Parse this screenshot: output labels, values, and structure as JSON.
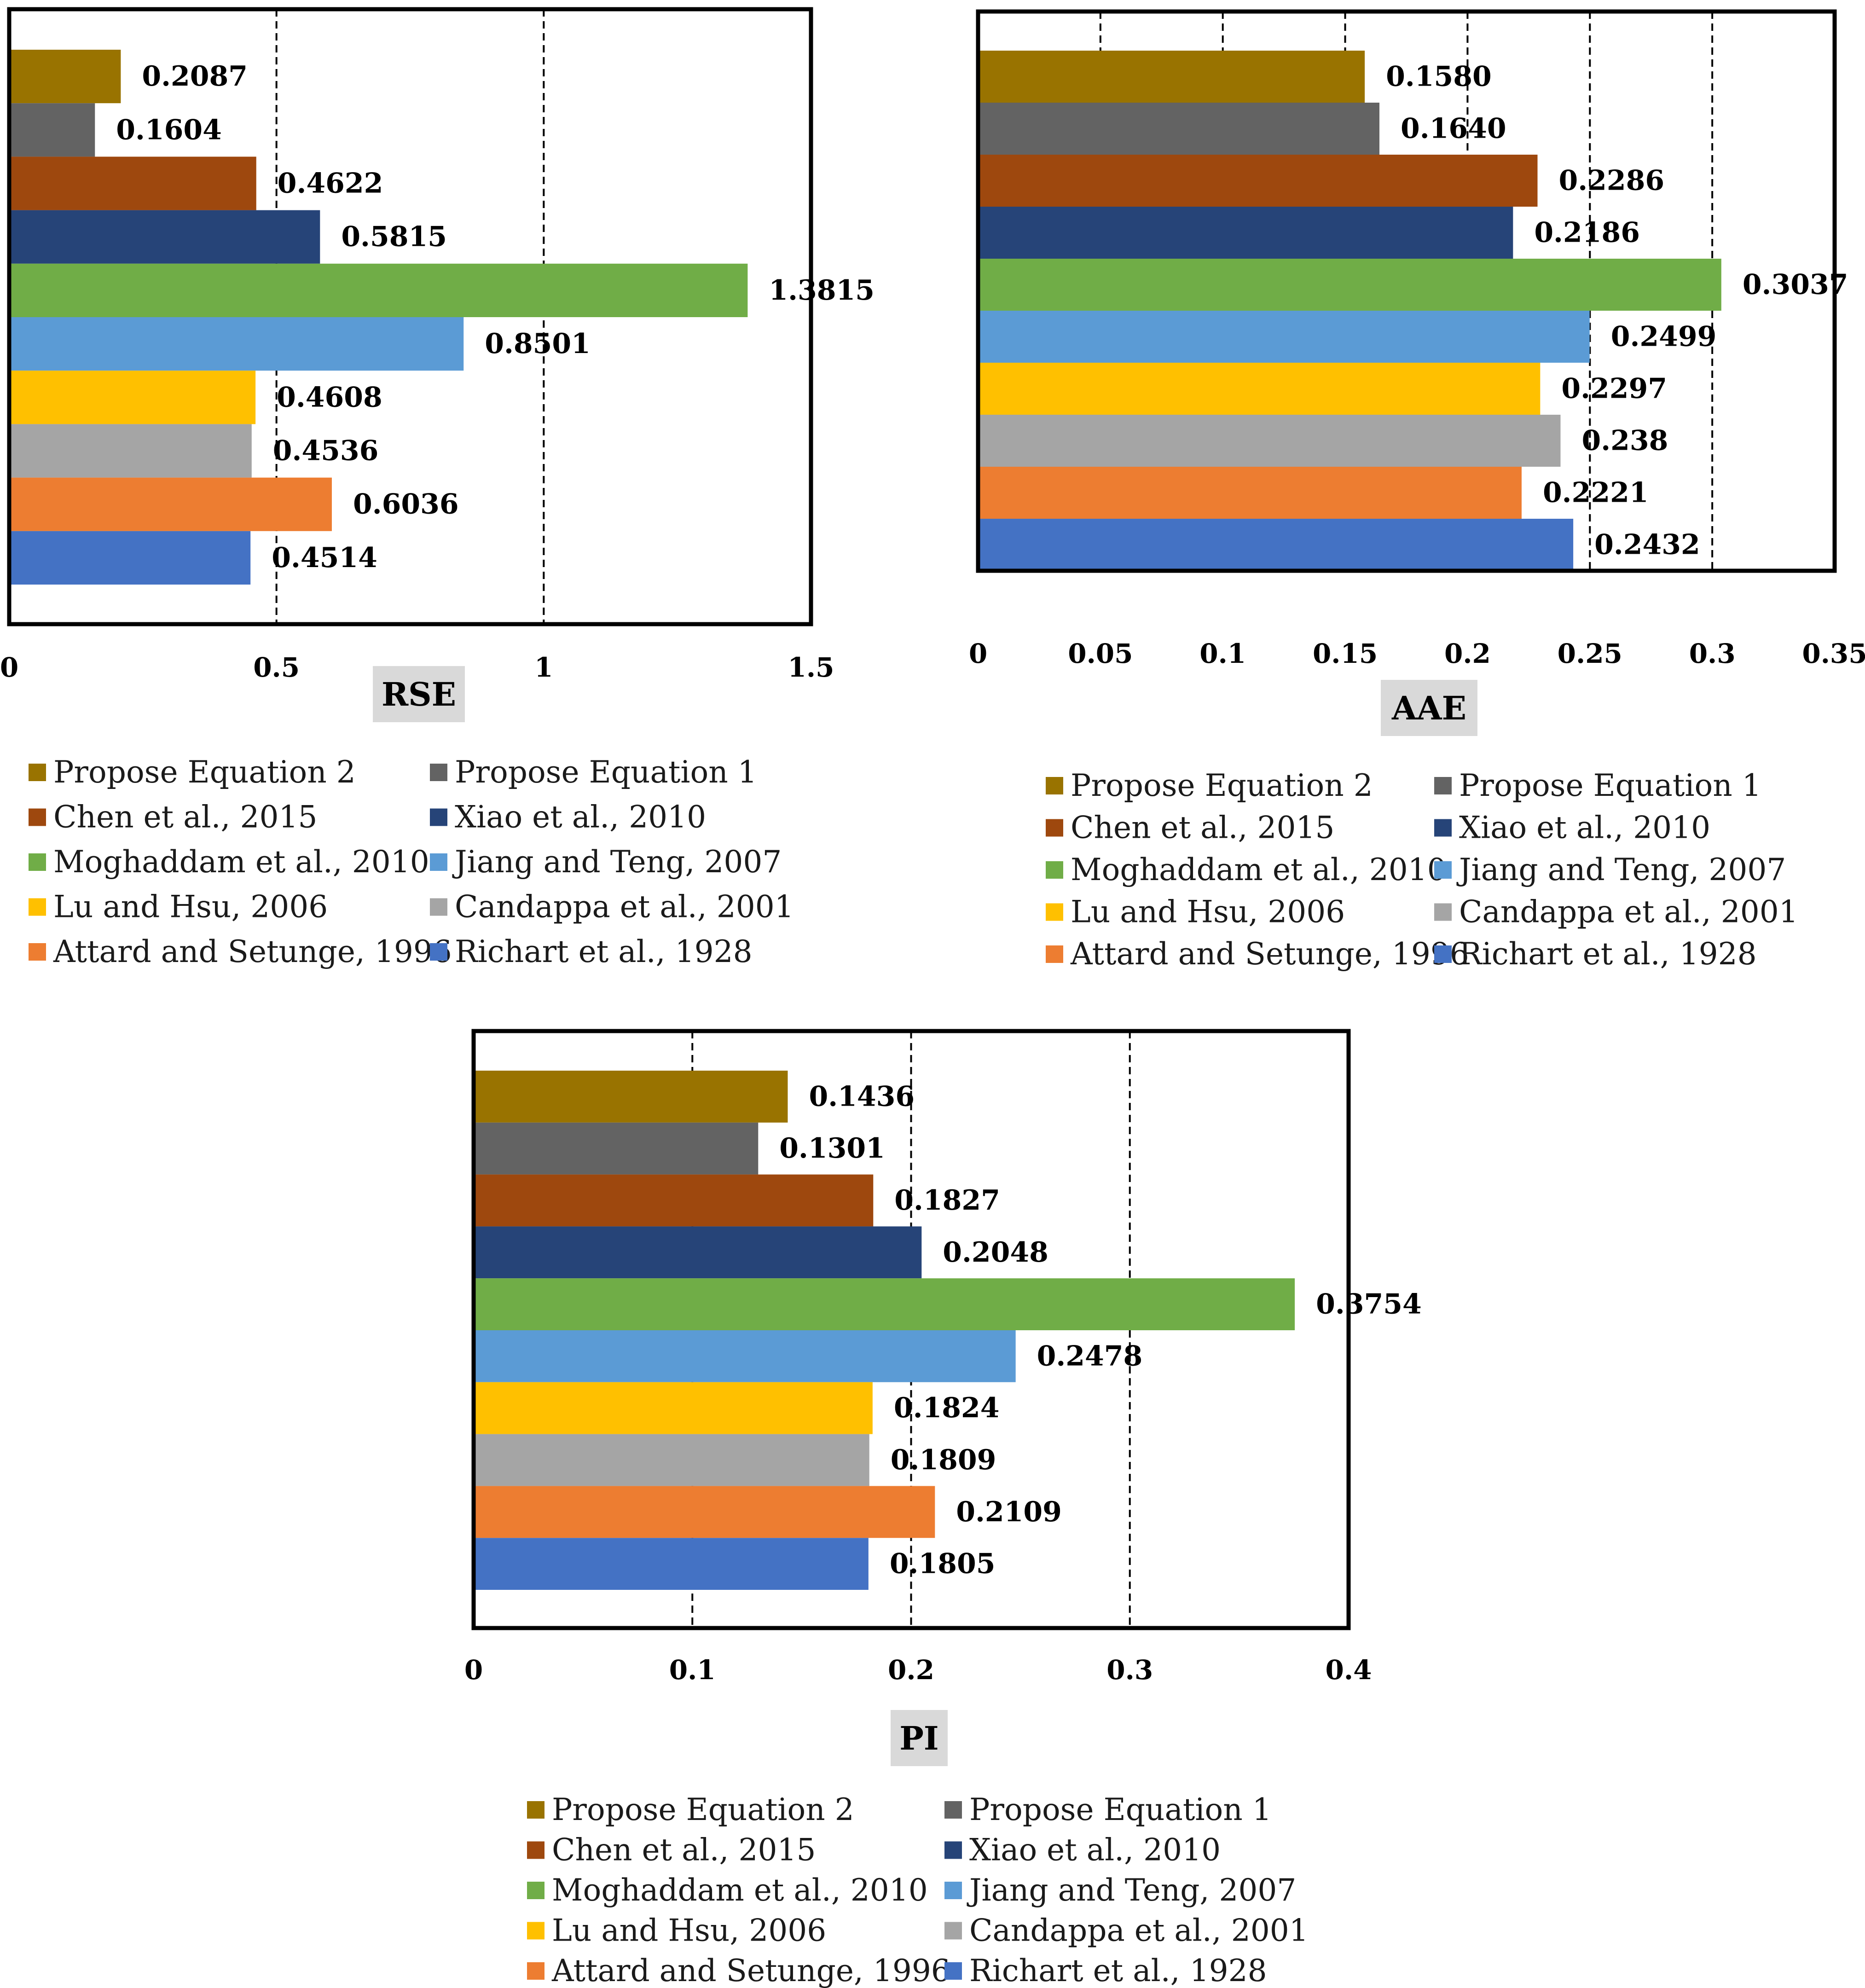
{
  "series_names": [
    "Propose Equation 2",
    "Propose Equation 1",
    "Chen et al., 2015",
    "Xiao et al., 2010",
    "Moghaddam et al., 2010",
    "Jiang and Teng, 2007",
    "Lu and Hsu, 2006",
    "Candappa et al., 2001",
    "Attard and Setunge, 1996",
    "Richart et al., 1928"
  ],
  "colors": [
    "#997300",
    "#636363",
    "#9e480e",
    "#264478",
    "#70ad47",
    "#5b9bd5",
    "#ffc000",
    "#a5a5a5",
    "#ed7d31",
    "#4472c4"
  ],
  "chart_data": [
    {
      "type": "bar",
      "orientation": "horizontal",
      "title": "RSE",
      "xlabel": "RSE",
      "categories": [
        "Propose Equation 2",
        "Propose Equation 1",
        "Chen et al., 2015",
        "Xiao et al., 2010",
        "Moghaddam et al., 2010",
        "Jiang and Teng, 2007",
        "Lu and Hsu, 2006",
        "Candappa et al., 2001",
        "Attard and Setunge, 1996",
        "Richart et al., 1928"
      ],
      "values": [
        0.2087,
        0.1604,
        0.4622,
        0.5815,
        1.3815,
        0.8501,
        0.4608,
        0.4536,
        0.6036,
        0.4514
      ],
      "value_labels": [
        "0.2087",
        "0.1604",
        "0.4622",
        "0.5815",
        "1.3815",
        "0.8501",
        "0.4608",
        "0.4536",
        "0.6036",
        "0.4514"
      ],
      "xlim": [
        0,
        1.5
      ],
      "ticks": [
        "0",
        "0.5",
        "1",
        "1.5"
      ],
      "grid": "dashed vertical",
      "legend": "bottom"
    },
    {
      "type": "bar",
      "orientation": "horizontal",
      "title": "AAE",
      "xlabel": "AAE",
      "categories": [
        "Propose Equation 2",
        "Propose Equation 1",
        "Chen et al., 2015",
        "Xiao et al., 2010",
        "Moghaddam et al., 2010",
        "Jiang and Teng, 2007",
        "Lu and Hsu, 2006",
        "Candappa et al., 2001",
        "Attard and Setunge, 1996",
        "Richart et al., 1928"
      ],
      "values": [
        0.158,
        0.164,
        0.2286,
        0.2186,
        0.3037,
        0.2499,
        0.2297,
        0.238,
        0.2221,
        0.2432
      ],
      "value_labels": [
        "0.1580",
        "0.1640",
        "0.2286",
        "0.2186",
        "0.3037",
        "0.2499",
        "0.2297",
        "0.238",
        "0.2221",
        "0.2432"
      ],
      "xlim": [
        0,
        0.35
      ],
      "ticks": [
        "0",
        "0.05",
        "0.1",
        "0.15",
        "0.2",
        "0.25",
        "0.3",
        "0.35"
      ],
      "grid": "dashed vertical",
      "legend": "bottom"
    },
    {
      "type": "bar",
      "orientation": "horizontal",
      "title": "PI",
      "xlabel": "PI",
      "categories": [
        "Propose Equation 2",
        "Propose Equation 1",
        "Chen et al., 2015",
        "Xiao et al., 2010",
        "Moghaddam et al., 2010",
        "Jiang and Teng, 2007",
        "Lu and Hsu, 2006",
        "Candappa et al., 2001",
        "Attard and Setunge, 1996",
        "Richart et al., 1928"
      ],
      "values": [
        0.1436,
        0.1301,
        0.1827,
        0.2048,
        0.3754,
        0.2478,
        0.1824,
        0.1809,
        0.2109,
        0.1805
      ],
      "value_labels": [
        "0.1436",
        "0.1301",
        "0.1827",
        "0.2048",
        "0.3754",
        "0.2478",
        "0.1824",
        "0.1809",
        "0.2109",
        "0.1805"
      ],
      "xlim": [
        0,
        0.4
      ],
      "ticks": [
        "0",
        "0.1",
        "0.2",
        "0.3",
        "0.4"
      ],
      "grid": "dashed vertical",
      "legend": "bottom"
    }
  ]
}
